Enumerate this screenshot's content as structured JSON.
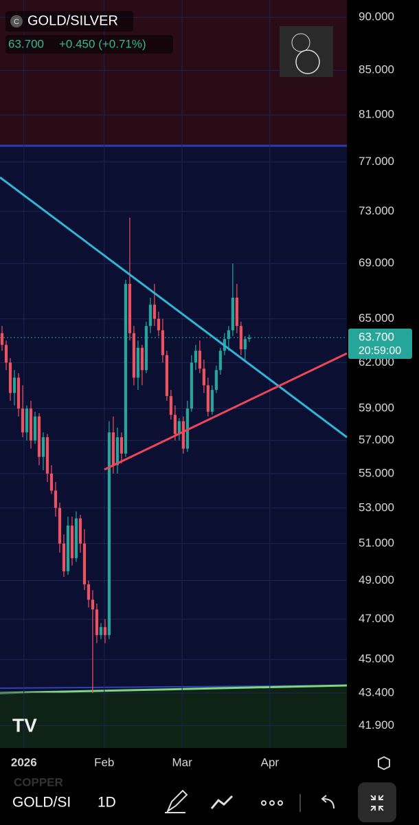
{
  "header": {
    "symbol": "GOLD/SILVER",
    "price": "63.700",
    "change": "+0.450 (+0.71%)"
  },
  "chart_data": {
    "type": "candlestick",
    "x": [
      0,
      1,
      2,
      3,
      4,
      5,
      6,
      7,
      8,
      9,
      10,
      11,
      12,
      13,
      14,
      15,
      16,
      17,
      18,
      19,
      20,
      21,
      22,
      23,
      24,
      25,
      26,
      27,
      28,
      29,
      30,
      31,
      32,
      33,
      34,
      35,
      36,
      37,
      38,
      39,
      40,
      41,
      42,
      43,
      44,
      45,
      46,
      47,
      48,
      49,
      50,
      51,
      52,
      53,
      54,
      55,
      56,
      57,
      58,
      59,
      60
    ],
    "open": [
      64,
      63.2,
      62,
      60,
      61,
      59,
      57.5,
      59,
      57,
      58.5,
      56,
      57.2,
      55,
      54,
      53,
      51,
      49.5,
      52,
      50.2,
      52.4,
      51,
      48.8,
      48,
      47.5,
      46.2,
      46.6,
      46.2,
      57.5,
      55.5,
      57.2,
      56.2,
      67.5,
      64,
      61,
      63,
      61.5,
      64.5,
      66,
      65,
      64.2,
      62.5,
      59.8,
      58.6,
      57.4,
      58.2,
      56.5,
      59,
      62,
      62.8,
      61.6,
      60.5,
      58.8,
      60.2,
      61.5,
      62.8,
      63.6,
      64.2,
      66.5,
      64.5,
      62.9,
      63.6
    ],
    "high": [
      64.5,
      63.5,
      62.3,
      61.5,
      61.3,
      60.5,
      59.2,
      59.5,
      58.8,
      58.7,
      57.5,
      57.4,
      55.5,
      54.5,
      53.3,
      51.5,
      52.5,
      52.5,
      52.8,
      52.6,
      51.8,
      49,
      48.5,
      47.8,
      46.8,
      47,
      58.2,
      58.5,
      57.8,
      57.5,
      67.8,
      72.5,
      64.5,
      63.5,
      63.2,
      64.8,
      66.5,
      67.5,
      65.5,
      65,
      62.8,
      60.2,
      59.2,
      58.4,
      58.5,
      59.5,
      62.5,
      63.2,
      63.5,
      62.2,
      61,
      60.5,
      61.8,
      63,
      64,
      64.5,
      69,
      67.5,
      64.8,
      63.8,
      63.9
    ],
    "low": [
      62.8,
      61.5,
      59.5,
      59.2,
      58.5,
      57.2,
      57,
      56.5,
      56.8,
      55.5,
      55.2,
      54.5,
      53.8,
      52.5,
      50.5,
      49.2,
      49.3,
      49.8,
      50,
      50.5,
      48.5,
      47.6,
      43.4,
      45.8,
      46,
      45.8,
      46,
      55,
      55,
      55.6,
      56,
      63.5,
      60.5,
      60.2,
      60.5,
      61.3,
      64,
      64.5,
      63.8,
      62,
      59.5,
      58.3,
      57,
      57,
      56.2,
      56.3,
      58.8,
      61.5,
      61.3,
      60,
      58.5,
      58.6,
      60,
      61.2,
      62.5,
      62.8,
      63.8,
      64,
      62.5,
      62.2,
      63.4
    ],
    "close": [
      63.2,
      62,
      60,
      61,
      59,
      57.5,
      59,
      57,
      58.5,
      56,
      57.2,
      55,
      54,
      53,
      51,
      49.5,
      52,
      50.2,
      52.4,
      51,
      48.8,
      48,
      47.5,
      46.2,
      46.6,
      46.2,
      57.5,
      55.5,
      57.2,
      56.2,
      67.5,
      64,
      61,
      63,
      61.5,
      64.5,
      66,
      65,
      64.2,
      62.5,
      59.8,
      58.6,
      57.4,
      58.2,
      56.5,
      59,
      62,
      62.8,
      61.6,
      60.5,
      58.8,
      60.2,
      61.5,
      62.8,
      63.6,
      64.2,
      66.5,
      64.5,
      62.9,
      63.6,
      63.7
    ],
    "up_color": "#26a69a",
    "down_color": "#f0515e",
    "xlim": [
      -0.5,
      83.7
    ],
    "xticks": [
      {
        "value": 5.3,
        "label": "2026"
      },
      {
        "value": 24.8,
        "label": "Feb"
      },
      {
        "value": 43.7,
        "label": "Mar"
      },
      {
        "value": 65,
        "label": "Apr"
      }
    ],
    "ylim": [
      40.9,
      91.7
    ],
    "log_scale": true,
    "grid": true,
    "yticks": [
      {
        "value": 90,
        "label": "90.000"
      },
      {
        "value": 85,
        "label": "85.000"
      },
      {
        "value": 81,
        "label": "81.000"
      },
      {
        "value": 77,
        "label": "77.000"
      },
      {
        "value": 73,
        "label": "73.000"
      },
      {
        "value": 69,
        "label": "69.000"
      },
      {
        "value": 65,
        "label": "65.000"
      },
      {
        "value": 62,
        "label": "62.000"
      },
      {
        "value": 59,
        "label": "59.000"
      },
      {
        "value": 57,
        "label": "57.000"
      },
      {
        "value": 55,
        "label": "55.000"
      },
      {
        "value": 53,
        "label": "53.000"
      },
      {
        "value": 51,
        "label": "51.000"
      },
      {
        "value": 49,
        "label": "49.000"
      },
      {
        "value": 47,
        "label": "47.000"
      },
      {
        "value": 45,
        "label": "45.000"
      },
      {
        "value": 43.4,
        "label": "43.400"
      },
      {
        "value": 41.9,
        "label": "41.900"
      }
    ],
    "last_price": {
      "value": 63.7,
      "label": "63.700"
    },
    "countdown": "20:59:00"
  },
  "toolbar": {
    "symbol": "GOLD/SI",
    "interval": "1D"
  }
}
